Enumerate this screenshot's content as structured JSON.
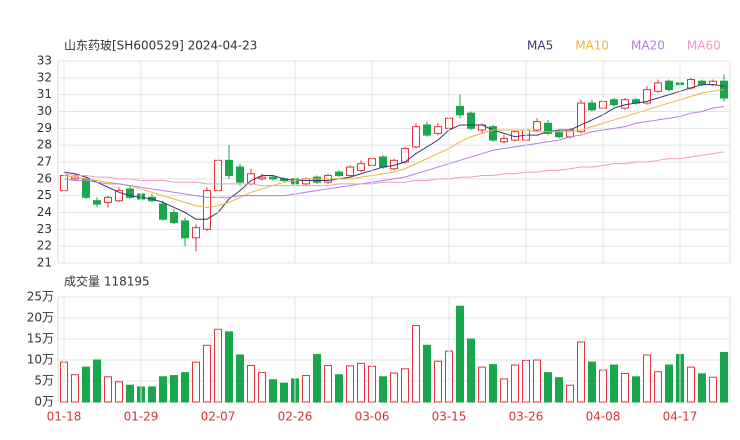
{
  "chart_data": [
    {
      "type": "candlestick",
      "title": "山东药玻[SH600529] 2024-04-23",
      "up_color": "#e8323c",
      "down_color": "#1aa64a",
      "ylim": [
        21,
        33
      ],
      "yticks": [
        21,
        22,
        23,
        24,
        25,
        26,
        27,
        28,
        29,
        30,
        31,
        32,
        33
      ],
      "grid": true,
      "open": [
        25.3,
        26.0,
        26.0,
        24.7,
        24.6,
        24.7,
        25.4,
        25.1,
        24.9,
        24.5,
        24.0,
        23.5,
        22.5,
        23.0,
        25.3,
        27.1,
        26.7,
        25.7,
        26.0,
        26.1,
        26.0,
        26.0,
        25.7,
        26.1,
        25.8,
        26.4,
        26.2,
        26.5,
        26.8,
        27.3,
        26.6,
        27.0,
        27.9,
        29.2,
        28.7,
        29.0,
        30.3,
        29.9,
        28.9,
        29.1,
        28.2,
        28.3,
        28.3,
        28.9,
        29.3,
        28.8,
        28.5,
        28.8,
        30.5,
        30.2,
        30.7,
        30.2,
        30.7,
        30.5,
        31.2,
        31.8,
        31.7,
        31.4,
        31.8,
        31.6,
        31.8
      ],
      "high": [
        26.4,
        26.3,
        26.1,
        24.9,
        25.0,
        25.5,
        25.6,
        25.3,
        25.1,
        24.7,
        24.2,
        23.7,
        23.3,
        25.5,
        27.3,
        28.0,
        26.9,
        26.6,
        26.3,
        26.2,
        26.1,
        26.1,
        26.1,
        26.2,
        26.3,
        26.5,
        26.8,
        27.1,
        27.4,
        27.4,
        27.2,
        27.9,
        29.3,
        29.4,
        29.3,
        29.9,
        31.0,
        30.0,
        29.3,
        29.2,
        28.6,
        28.9,
        29.1,
        29.6,
        29.5,
        28.9,
        29.0,
        30.7,
        30.7,
        30.8,
        30.8,
        30.8,
        30.8,
        31.5,
        31.9,
        31.9,
        32.3,
        32.0,
        31.9,
        31.9,
        32.2
      ],
      "low": [
        25.1,
        25.9,
        24.8,
        24.3,
        24.3,
        24.6,
        24.8,
        24.6,
        24.6,
        23.5,
        23.3,
        22.0,
        21.7,
        22.9,
        25.2,
        26.0,
        25.6,
        25.6,
        25.9,
        25.9,
        25.8,
        25.6,
        25.6,
        25.7,
        25.7,
        26.1,
        26.1,
        26.4,
        26.7,
        26.6,
        26.5,
        26.9,
        27.8,
        28.5,
        28.6,
        28.9,
        29.6,
        28.9,
        28.7,
        28.2,
        28.1,
        28.2,
        28.1,
        28.8,
        28.6,
        28.4,
        28.4,
        28.7,
        30.0,
        30.1,
        30.3,
        30.1,
        30.4,
        30.4,
        31.1,
        31.2,
        31.5,
        31.3,
        31.5,
        31.5,
        30.6
      ],
      "close": [
        26.2,
        26.1,
        24.9,
        24.5,
        24.9,
        25.3,
        24.9,
        24.8,
        24.7,
        23.6,
        23.4,
        22.5,
        23.1,
        25.3,
        27.1,
        26.2,
        25.8,
        26.3,
        26.1,
        26.0,
        25.9,
        25.7,
        26.0,
        25.8,
        26.2,
        26.2,
        26.7,
        26.9,
        27.2,
        26.7,
        27.1,
        27.8,
        29.1,
        28.6,
        29.1,
        29.6,
        29.8,
        29.0,
        29.2,
        28.3,
        28.4,
        28.8,
        28.9,
        29.4,
        28.7,
        28.5,
        28.9,
        30.5,
        30.1,
        30.6,
        30.4,
        30.7,
        30.5,
        31.3,
        31.7,
        31.3,
        31.6,
        31.9,
        31.6,
        31.8,
        30.8
      ],
      "series": [
        {
          "name": "MA5",
          "color": "#3a3a6e",
          "values": [
            26.4,
            26.3,
            26.1,
            25.8,
            25.5,
            25.2,
            25.0,
            24.9,
            24.8,
            24.6,
            24.3,
            24.0,
            23.6,
            23.6,
            24.0,
            24.8,
            25.3,
            25.9,
            26.2,
            26.2,
            26.0,
            25.9,
            25.9,
            25.9,
            25.9,
            26.0,
            26.1,
            26.3,
            26.5,
            26.7,
            26.8,
            27.0,
            27.5,
            27.9,
            28.3,
            28.9,
            29.2,
            29.2,
            29.2,
            28.9,
            28.7,
            28.5,
            28.6,
            28.6,
            28.8,
            28.9,
            28.9,
            29.2,
            29.5,
            29.8,
            30.2,
            30.4,
            30.5,
            30.6,
            30.8,
            31.0,
            31.2,
            31.4,
            31.6,
            31.6,
            31.5
          ]
        },
        {
          "name": "MA10",
          "color": "#f0b443",
          "values": [
            26.2,
            26.1,
            26.0,
            25.9,
            25.8,
            25.7,
            25.6,
            25.4,
            25.2,
            25.0,
            24.8,
            24.6,
            24.4,
            24.3,
            24.4,
            24.6,
            24.9,
            25.2,
            25.4,
            25.6,
            25.8,
            25.9,
            26.0,
            26.0,
            26.0,
            26.0,
            26.0,
            26.1,
            26.2,
            26.3,
            26.4,
            26.6,
            26.9,
            27.2,
            27.5,
            27.8,
            28.2,
            28.5,
            28.7,
            28.9,
            28.9,
            28.9,
            28.9,
            28.8,
            28.8,
            28.8,
            28.8,
            28.9,
            29.1,
            29.3,
            29.5,
            29.7,
            29.9,
            30.1,
            30.3,
            30.5,
            30.7,
            30.9,
            31.1,
            31.2,
            31.3
          ]
        },
        {
          "name": "MA20",
          "color": "#b77ee0",
          "values": [
            26.0,
            25.9,
            25.9,
            25.8,
            25.7,
            25.7,
            25.6,
            25.5,
            25.4,
            25.3,
            25.2,
            25.1,
            25.0,
            24.9,
            24.9,
            24.9,
            25.0,
            25.0,
            25.0,
            25.0,
            25.0,
            25.1,
            25.2,
            25.3,
            25.4,
            25.5,
            25.6,
            25.7,
            25.8,
            25.9,
            26.0,
            26.1,
            26.3,
            26.5,
            26.7,
            26.9,
            27.1,
            27.3,
            27.5,
            27.7,
            27.8,
            27.9,
            28.0,
            28.1,
            28.2,
            28.3,
            28.5,
            28.6,
            28.8,
            28.9,
            29.0,
            29.1,
            29.3,
            29.4,
            29.5,
            29.6,
            29.7,
            29.9,
            30.0,
            30.2,
            30.3
          ]
        },
        {
          "name": "MA60",
          "color": "#ee9cc6",
          "values": [
            26.3,
            26.2,
            26.2,
            26.1,
            26.1,
            26.0,
            26.0,
            25.9,
            25.9,
            25.9,
            25.8,
            25.8,
            25.8,
            25.7,
            25.7,
            25.7,
            25.7,
            25.7,
            25.6,
            25.6,
            25.6,
            25.6,
            25.6,
            25.6,
            25.6,
            25.7,
            25.7,
            25.7,
            25.7,
            25.8,
            25.8,
            25.8,
            25.9,
            25.9,
            26.0,
            26.0,
            26.1,
            26.1,
            26.2,
            26.2,
            26.3,
            26.3,
            26.4,
            26.4,
            26.5,
            26.5,
            26.6,
            26.7,
            26.7,
            26.8,
            26.9,
            26.9,
            27.0,
            27.0,
            27.1,
            27.2,
            27.2,
            27.3,
            27.4,
            27.5,
            27.6
          ]
        }
      ]
    },
    {
      "type": "volume",
      "title": "成交量 118195",
      "categories": [
        "01-18",
        null,
        null,
        null,
        null,
        null,
        null,
        "01-29",
        null,
        null,
        null,
        null,
        null,
        null,
        "02-07",
        null,
        null,
        null,
        null,
        null,
        null,
        "02-26",
        null,
        null,
        null,
        null,
        null,
        null,
        "03-06",
        null,
        null,
        null,
        null,
        null,
        null,
        "03-15",
        null,
        null,
        null,
        null,
        null,
        null,
        "03-26",
        null,
        null,
        null,
        null,
        null,
        null,
        "04-08",
        null,
        null,
        null,
        null,
        null,
        null,
        "04-17",
        null,
        null,
        null,
        null
      ],
      "ylim": [
        0,
        25
      ],
      "yticks": [
        {
          "value": 0,
          "label": "0万"
        },
        {
          "value": 5,
          "label": "5万"
        },
        {
          "value": 10,
          "label": "10万"
        },
        {
          "value": 15,
          "label": "15万"
        },
        {
          "value": 20,
          "label": "20万"
        },
        {
          "value": 25,
          "label": "25万"
        }
      ],
      "grid": true,
      "values": [
        9.5,
        6.5,
        8.3,
        10.0,
        6.0,
        4.8,
        4.0,
        3.6,
        3.6,
        6.0,
        6.3,
        7.0,
        9.5,
        13.5,
        17.3,
        16.7,
        11.2,
        8.7,
        7.0,
        5.3,
        4.5,
        5.5,
        6.3,
        11.3,
        8.7,
        6.5,
        8.6,
        9.2,
        8.5,
        6.0,
        6.9,
        7.9,
        18.2,
        13.5,
        9.7,
        12.1,
        22.8,
        15.0,
        8.3,
        8.9,
        5.5,
        8.8,
        9.9,
        10.0,
        7.0,
        5.8,
        4.0,
        14.3,
        9.5,
        7.6,
        8.8,
        6.8,
        6.0,
        11.2,
        7.2,
        8.8,
        11.3,
        8.3,
        6.7,
        5.9,
        11.8
      ]
    }
  ]
}
